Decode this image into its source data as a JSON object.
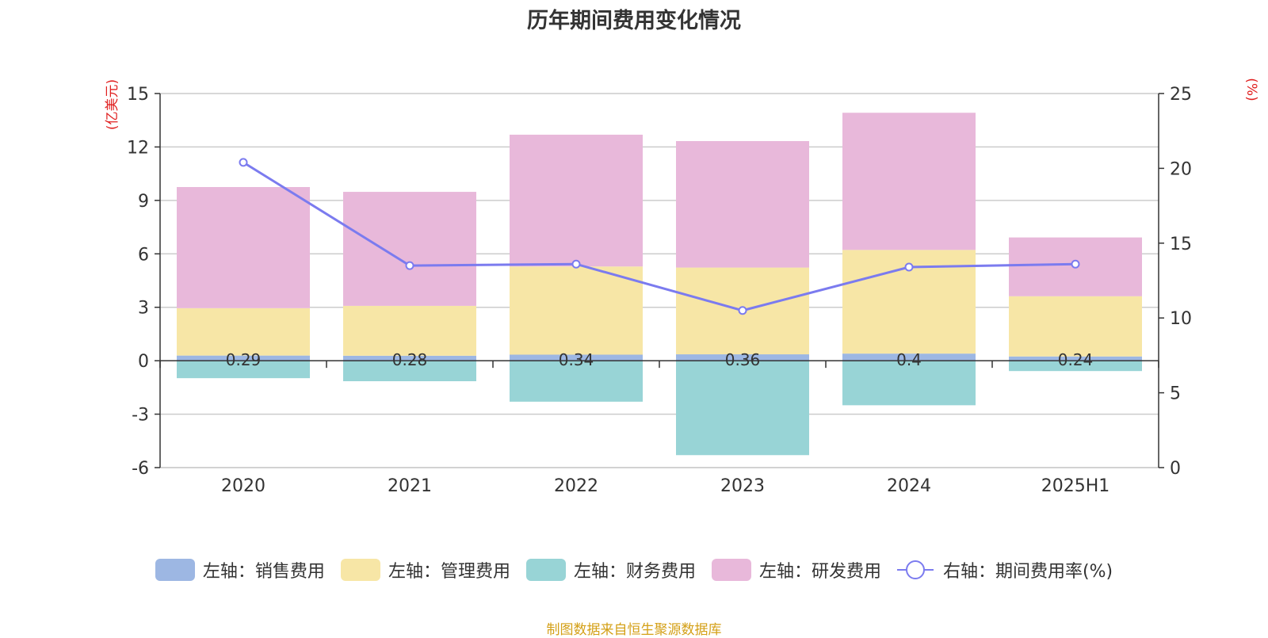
{
  "title": "历年期间费用变化情况",
  "source": "制图数据来自恒生聚源数据库",
  "colors": {
    "sales": "#9db7e3",
    "admin": "#f7e6a6",
    "finance": "#98d4d6",
    "rd": "#e8b8da",
    "rate": "#7b7bef",
    "axis_unit": "#e02020"
  },
  "legend": [
    {
      "label": "左轴：销售费用",
      "kind": "bar",
      "color_key": "sales"
    },
    {
      "label": "左轴：管理费用",
      "kind": "bar",
      "color_key": "admin"
    },
    {
      "label": "左轴：财务费用",
      "kind": "bar",
      "color_key": "finance"
    },
    {
      "label": "左轴：研发费用",
      "kind": "bar",
      "color_key": "rd"
    },
    {
      "label": "右轴：期间费用率(%)",
      "kind": "line",
      "color_key": "rate"
    }
  ],
  "chart_data": {
    "type": "bar",
    "stacked": true,
    "categories": [
      "2020",
      "2021",
      "2022",
      "2023",
      "2024",
      "2025H1"
    ],
    "left_axis": {
      "unit_label": "(亿美元)",
      "ylim": [
        -6,
        15
      ],
      "ticks": [
        15,
        12,
        9,
        6,
        3,
        0,
        -3,
        -6
      ]
    },
    "right_axis": {
      "unit_label": "(%)",
      "ylim": [
        0,
        25
      ],
      "ticks": [
        25,
        20,
        15,
        10,
        5,
        0
      ]
    },
    "grid": true,
    "legend_position": "bottom",
    "series": [
      {
        "name": "左轴：销售费用",
        "axis": "left",
        "color_key": "sales",
        "values": [
          0.29,
          0.28,
          0.34,
          0.36,
          0.4,
          0.24
        ],
        "data_labels": [
          "0.29",
          "0.28",
          "0.34",
          "0.36",
          "0.4",
          "0.24"
        ]
      },
      {
        "name": "左轴：管理费用",
        "axis": "left",
        "color_key": "admin",
        "values": [
          2.66,
          2.8,
          4.95,
          4.87,
          5.82,
          3.38
        ]
      },
      {
        "name": "左轴：财务费用",
        "axis": "left",
        "color_key": "finance",
        "values": [
          -0.98,
          -1.15,
          -2.3,
          -5.3,
          -2.5,
          -0.58
        ]
      },
      {
        "name": "左轴：研发费用",
        "axis": "left",
        "color_key": "rd",
        "values": [
          6.8,
          6.4,
          7.4,
          7.1,
          7.7,
          3.3
        ]
      },
      {
        "name": "右轴：期间费用率(%)",
        "axis": "right",
        "type": "line",
        "color_key": "rate",
        "values": [
          20.4,
          13.5,
          13.6,
          10.5,
          13.4,
          13.6
        ]
      }
    ]
  }
}
